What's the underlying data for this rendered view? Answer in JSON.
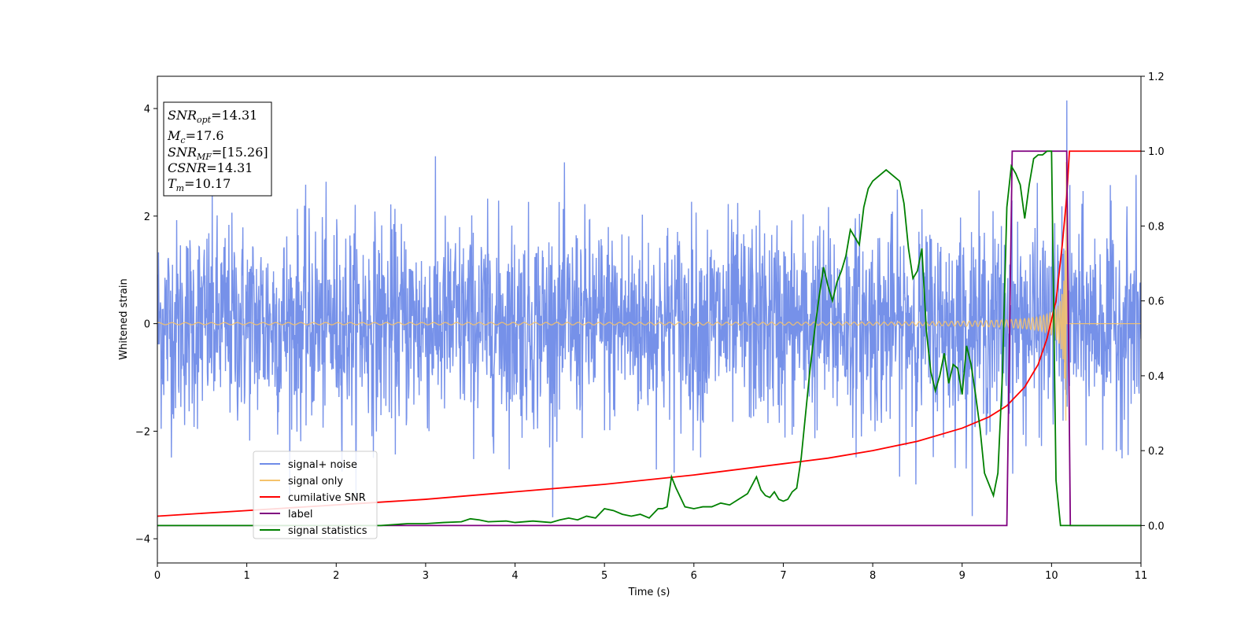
{
  "chart_data": {
    "type": "line",
    "title": "",
    "xlabel": "Time (s)",
    "ylabel": "Whitened strain",
    "xlim": [
      0,
      11
    ],
    "ylim_left": [
      -4.45,
      4.6
    ],
    "ylim_right": [
      -0.1,
      1.2
    ],
    "xticks": [
      0,
      1,
      2,
      3,
      4,
      5,
      6,
      7,
      8,
      9,
      10,
      11
    ],
    "yticks_left": [
      -4,
      -2,
      0,
      2,
      4
    ],
    "yticks_right": [
      0.0,
      0.2,
      0.4,
      0.6,
      0.8,
      1.0,
      1.2
    ],
    "grid": false,
    "legend_placement": "lower-left",
    "annotation": {
      "snr_opt": {
        "symbol": "SNR",
        "sub": "opt",
        "value": "=14.31"
      },
      "mc": {
        "symbol": "M",
        "sub": "c",
        "value": "=17.6"
      },
      "snr_mf": {
        "symbol": "SNR",
        "sub": "MF",
        "value": "=[15.26]"
      },
      "csnr": {
        "symbol": "CSNR",
        "sub": "",
        "value": "=14.31"
      },
      "tm": {
        "symbol": "T",
        "sub": "m",
        "value": "=10.17"
      }
    },
    "series": [
      {
        "name": "signal+ noise",
        "axis": "left",
        "color": "#6f8be8",
        "kind": "noise",
        "amplitude_std": 1.0,
        "peak_x": 10.17,
        "peak_y": 4.15
      },
      {
        "name": "signal only",
        "axis": "left",
        "color": "#f5c26b",
        "kind": "chirp",
        "start_amplitude": 0.02,
        "merger_time": 10.17,
        "peak_amplitude": 3.2
      },
      {
        "name": "cumilative SNR",
        "axis": "right",
        "color": "#ff0000",
        "x": [
          0,
          1,
          2,
          3,
          4,
          5,
          6,
          7,
          7.5,
          8,
          8.5,
          9,
          9.3,
          9.5,
          9.7,
          9.85,
          9.95,
          10.05,
          10.12,
          10.17,
          10.2,
          11
        ],
        "y": [
          0.025,
          0.04,
          0.055,
          0.07,
          0.09,
          0.11,
          0.135,
          0.165,
          0.18,
          0.2,
          0.225,
          0.26,
          0.29,
          0.32,
          0.37,
          0.43,
          0.5,
          0.6,
          0.75,
          0.88,
          1.0,
          1.0
        ]
      },
      {
        "name": "label",
        "axis": "right",
        "color": "#800080",
        "x": [
          0,
          9.5,
          9.56,
          10.17,
          10.21,
          11
        ],
        "y": [
          0,
          0,
          1,
          1,
          0,
          0
        ]
      },
      {
        "name": "signal statistics",
        "axis": "right",
        "color": "#008000",
        "x": [
          0,
          0.5,
          1,
          1.5,
          2,
          2.5,
          2.8,
          3,
          3.2,
          3.4,
          3.5,
          3.6,
          3.7,
          3.9,
          4.0,
          4.2,
          4.4,
          4.5,
          4.6,
          4.7,
          4.8,
          4.9,
          5.0,
          5.1,
          5.2,
          5.3,
          5.4,
          5.5,
          5.6,
          5.65,
          5.7,
          5.75,
          5.8,
          5.9,
          6.0,
          6.1,
          6.2,
          6.3,
          6.4,
          6.5,
          6.6,
          6.7,
          6.75,
          6.8,
          6.85,
          6.9,
          6.95,
          7.0,
          7.05,
          7.1,
          7.15,
          7.2,
          7.25,
          7.3,
          7.35,
          7.4,
          7.45,
          7.5,
          7.55,
          7.6,
          7.65,
          7.7,
          7.75,
          7.8,
          7.85,
          7.9,
          7.95,
          8.0,
          8.05,
          8.1,
          8.15,
          8.2,
          8.25,
          8.3,
          8.35,
          8.4,
          8.45,
          8.5,
          8.55,
          8.6,
          8.65,
          8.7,
          8.75,
          8.8,
          8.85,
          8.9,
          8.95,
          9.0,
          9.05,
          9.1,
          9.15,
          9.2,
          9.25,
          9.3,
          9.35,
          9.4,
          9.45,
          9.5,
          9.55,
          9.6,
          9.65,
          9.7,
          9.75,
          9.8,
          9.85,
          9.9,
          9.95,
          10.0,
          10.05,
          10.1,
          10.15,
          10.18,
          10.22,
          10.3,
          10.5,
          11
        ],
        "y": [
          0.0,
          0.0,
          0.0,
          0.0,
          0.0,
          0.0,
          0.005,
          0.005,
          0.008,
          0.01,
          0.018,
          0.015,
          0.01,
          0.012,
          0.008,
          0.012,
          0.008,
          0.015,
          0.02,
          0.015,
          0.025,
          0.02,
          0.045,
          0.04,
          0.03,
          0.025,
          0.03,
          0.02,
          0.045,
          0.045,
          0.05,
          0.13,
          0.1,
          0.05,
          0.045,
          0.05,
          0.05,
          0.06,
          0.055,
          0.07,
          0.085,
          0.13,
          0.095,
          0.08,
          0.075,
          0.09,
          0.07,
          0.065,
          0.07,
          0.09,
          0.1,
          0.18,
          0.3,
          0.42,
          0.52,
          0.61,
          0.69,
          0.64,
          0.6,
          0.65,
          0.68,
          0.72,
          0.79,
          0.77,
          0.75,
          0.85,
          0.9,
          0.92,
          0.93,
          0.94,
          0.95,
          0.94,
          0.93,
          0.92,
          0.86,
          0.74,
          0.66,
          0.68,
          0.74,
          0.52,
          0.41,
          0.36,
          0.4,
          0.46,
          0.38,
          0.43,
          0.42,
          0.35,
          0.48,
          0.43,
          0.35,
          0.26,
          0.14,
          0.11,
          0.08,
          0.14,
          0.4,
          0.85,
          0.96,
          0.94,
          0.91,
          0.82,
          0.91,
          0.98,
          0.99,
          0.99,
          1.0,
          1.0,
          0.12,
          0.0,
          0.0,
          0.0,
          0.0,
          0.0,
          0.0,
          0.0
        ]
      }
    ]
  }
}
